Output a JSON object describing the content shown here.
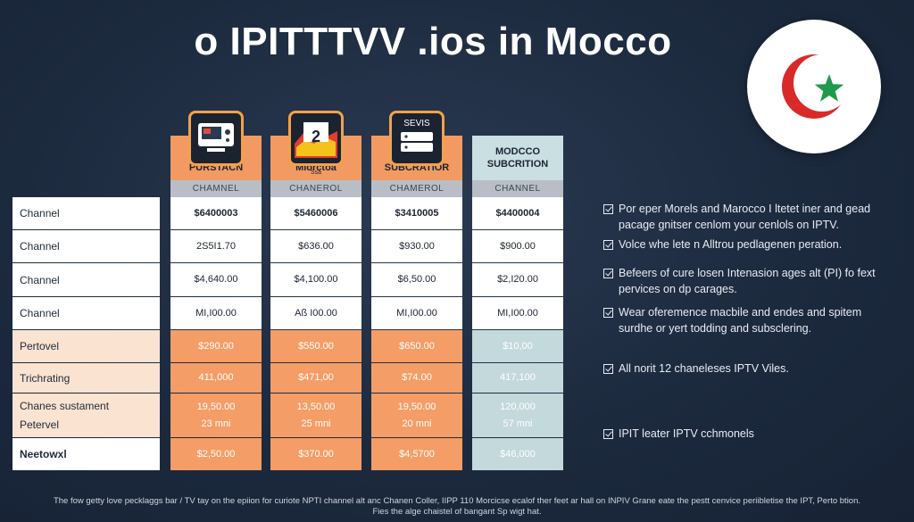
{
  "title": "o IPITTTVV .ios in Mocco",
  "flag": {
    "icon": "morocco-crescent-star-icon",
    "colors": {
      "crescent": "#d92a2a",
      "star": "#1f9a4a"
    }
  },
  "columns": [
    {
      "icon": "tv-monitor-icon",
      "icon_text": "",
      "head": "PURSTACN",
      "band": "CHAMNEL",
      "style": "orange",
      "cells": [
        "$6400003",
        "2S5I1.70",
        "$4,640.00",
        "MI,I00.00",
        "$290.00",
        "411,000",
        [
          "19,50.00",
          "23 mni"
        ],
        "$2,50.00"
      ]
    },
    {
      "icon": "morocco-map-icon",
      "icon_text": "2",
      "head": "Mlorctoa",
      "head_sub": "Ssa",
      "band": "CHANEROL",
      "style": "orange",
      "cells": [
        "$5460006",
        "$636.00",
        "$4,100.00",
        "Aß I00.00",
        "$550.00",
        "$471,00",
        [
          "13,50.00",
          "25 mni"
        ],
        "$370.00"
      ]
    },
    {
      "icon": "server-device-icon",
      "icon_text": "SEVIS",
      "head": "SUBCRATIOR",
      "band": "CHAMEROL",
      "style": "orange",
      "cells": [
        "$3410005",
        "$930.00",
        "$6,50.00",
        "MI,I00.00",
        "$650.00",
        "$74.00",
        [
          "19,50.00",
          "20 mni"
        ],
        "$4,5700"
      ]
    },
    {
      "icon": "",
      "icon_text": "",
      "head": "MODCCO\nSUBCRITION",
      "band": "CHANNEL",
      "style": "blue",
      "cells": [
        "$4400004",
        "$900.00",
        "$2,I20.00",
        "MI,I00.00",
        "$10,00",
        "417,100",
        [
          "120,000",
          "57 mni"
        ],
        "$46,000"
      ]
    }
  ],
  "row_labels": [
    "Channel",
    "Channel",
    "Channel",
    "Channel",
    "Pertovel",
    "Trichrating",
    [
      "Chanes sustament",
      "Petervel"
    ],
    "Neetowxl"
  ],
  "notes": [
    "Por eper Morels and Marocco I ltetet iner and gead pacage gnitser cenlom your cenlols on IPTV.",
    "Volce whe lete n Alltrou pedlagenen peration.",
    "Befeers of cure losen Intenasion ages alt (PI) fo fext pervices on dp carages.",
    "Wear oferemence macbile and endes and spitem surdhe or yert todding and subsclering.",
    "All norit 12 chaneleses IPTV Viles.",
    "IPIT leater IPTV cchmonels"
  ],
  "footer": {
    "line1": "The fow getty love pecklaggs bar / TV tay on the epiion for curiote NPTI channel alt anc Chanen Coller, IIPP 110 Morcicse ecalof ther feet ar hall on INPIV Grane eate the pestt cenvice periibletise the IPT, Perto btion.",
    "line2": "Fies the alge chaistel of bangant Sp wigt hat."
  }
}
